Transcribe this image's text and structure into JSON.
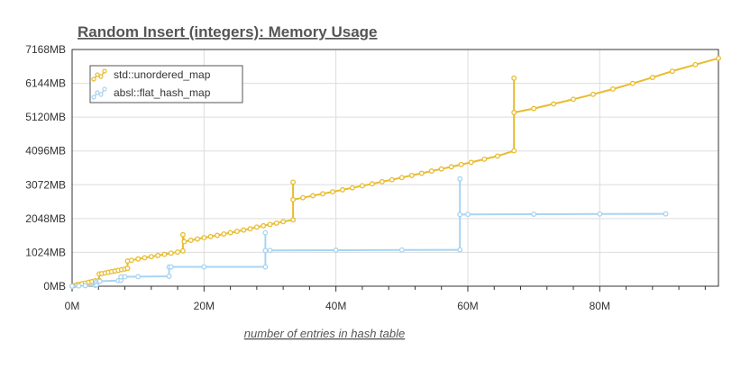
{
  "chart_data": {
    "type": "line",
    "title": "Random Insert (integers): Memory Usage",
    "xlabel": "number of entries in hash table",
    "ylabel": "",
    "xlim": [
      0,
      98000000
    ],
    "ylim": [
      0,
      7168
    ],
    "x_ticks": [
      {
        "value": 0,
        "label": "0M"
      },
      {
        "value": 20000000,
        "label": "20M"
      },
      {
        "value": 40000000,
        "label": "40M"
      },
      {
        "value": 60000000,
        "label": "60M"
      },
      {
        "value": 80000000,
        "label": "80M"
      }
    ],
    "x_minor_step": 4000000,
    "y_ticks": [
      {
        "value": 0,
        "label": "0MB"
      },
      {
        "value": 1024,
        "label": "1024MB"
      },
      {
        "value": 2048,
        "label": "2048MB"
      },
      {
        "value": 3072,
        "label": "3072MB"
      },
      {
        "value": 4096,
        "label": "4096MB"
      },
      {
        "value": 5120,
        "label": "5120MB"
      },
      {
        "value": 6144,
        "label": "6144MB"
      },
      {
        "value": 7168,
        "label": "7168MB"
      }
    ],
    "grid": true,
    "legend_position": "top-left",
    "series": [
      {
        "name": "std::unordered_map",
        "color": "#e8bc2e",
        "points": [
          [
            0,
            2
          ],
          [
            300000,
            20
          ],
          [
            700000,
            40
          ],
          [
            1000000,
            55
          ],
          [
            1500000,
            75
          ],
          [
            2000000,
            95
          ],
          [
            2500000,
            120
          ],
          [
            3000000,
            140
          ],
          [
            3500000,
            165
          ],
          [
            4100000,
            180
          ],
          [
            4100000,
            370
          ],
          [
            4500000,
            380
          ],
          [
            5000000,
            400
          ],
          [
            5500000,
            420
          ],
          [
            6000000,
            440
          ],
          [
            6500000,
            460
          ],
          [
            7000000,
            480
          ],
          [
            7500000,
            500
          ],
          [
            8000000,
            520
          ],
          [
            8400000,
            540
          ],
          [
            8400000,
            760
          ],
          [
            9000000,
            785
          ],
          [
            10000000,
            825
          ],
          [
            11000000,
            860
          ],
          [
            12000000,
            895
          ],
          [
            13000000,
            930
          ],
          [
            14000000,
            965
          ],
          [
            15000000,
            1000
          ],
          [
            16000000,
            1035
          ],
          [
            16800000,
            1070
          ],
          [
            16800000,
            1560
          ],
          [
            17000000,
            1350
          ],
          [
            18000000,
            1390
          ],
          [
            19000000,
            1430
          ],
          [
            20000000,
            1470
          ],
          [
            21000000,
            1505
          ],
          [
            22000000,
            1540
          ],
          [
            23000000,
            1580
          ],
          [
            24000000,
            1620
          ],
          [
            25000000,
            1660
          ],
          [
            26000000,
            1700
          ],
          [
            27000000,
            1740
          ],
          [
            28000000,
            1790
          ],
          [
            29000000,
            1830
          ],
          [
            30000000,
            1870
          ],
          [
            31000000,
            1910
          ],
          [
            32000000,
            1955
          ],
          [
            33500000,
            2010
          ],
          [
            33500000,
            3150
          ],
          [
            33500000,
            2620
          ],
          [
            35000000,
            2680
          ],
          [
            36500000,
            2740
          ],
          [
            38000000,
            2800
          ],
          [
            39500000,
            2860
          ],
          [
            41000000,
            2920
          ],
          [
            42500000,
            2980
          ],
          [
            44000000,
            3040
          ],
          [
            45500000,
            3100
          ],
          [
            47000000,
            3165
          ],
          [
            48500000,
            3225
          ],
          [
            50000000,
            3290
          ],
          [
            51500000,
            3355
          ],
          [
            53000000,
            3420
          ],
          [
            54500000,
            3485
          ],
          [
            56000000,
            3550
          ],
          [
            57500000,
            3615
          ],
          [
            59000000,
            3685
          ],
          [
            60500000,
            3750
          ],
          [
            62500000,
            3845
          ],
          [
            64500000,
            3940
          ],
          [
            67000000,
            4100
          ],
          [
            67000000,
            6300
          ],
          [
            67000000,
            5260
          ],
          [
            70000000,
            5380
          ],
          [
            73000000,
            5520
          ],
          [
            76000000,
            5660
          ],
          [
            79000000,
            5810
          ],
          [
            82000000,
            5970
          ],
          [
            85000000,
            6140
          ],
          [
            88000000,
            6320
          ],
          [
            91000000,
            6510
          ],
          [
            94500000,
            6710
          ],
          [
            98000000,
            6900
          ]
        ]
      },
      {
        "name": "absl::flat_hash_map",
        "color": "#a8d4f2",
        "points": [
          [
            0,
            2
          ],
          [
            1000000,
            8
          ],
          [
            2000000,
            16
          ],
          [
            3500000,
            24
          ],
          [
            3700000,
            40
          ],
          [
            3700000,
            140
          ],
          [
            4000000,
            145
          ],
          [
            4200000,
            150
          ],
          [
            7000000,
            170
          ],
          [
            7400000,
            180
          ],
          [
            7400000,
            280
          ],
          [
            8000000,
            285
          ],
          [
            10000000,
            290
          ],
          [
            14700000,
            300
          ],
          [
            14700000,
            580
          ],
          [
            15000000,
            585
          ],
          [
            20000000,
            585
          ],
          [
            29300000,
            585
          ],
          [
            29300000,
            1620
          ],
          [
            29300000,
            1080
          ],
          [
            30000000,
            1085
          ],
          [
            40000000,
            1090
          ],
          [
            50000000,
            1095
          ],
          [
            58800000,
            1100
          ],
          [
            58800000,
            3250
          ],
          [
            58800000,
            2170
          ],
          [
            60000000,
            2175
          ],
          [
            70000000,
            2180
          ],
          [
            80000000,
            2185
          ],
          [
            90000000,
            2190
          ]
        ]
      }
    ]
  }
}
